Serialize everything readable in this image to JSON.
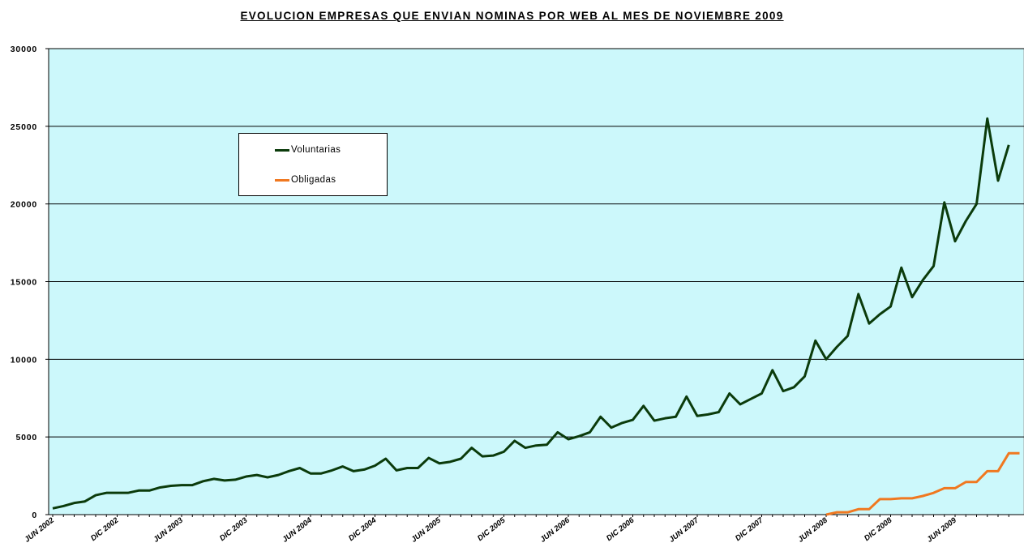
{
  "chart_data": {
    "type": "line",
    "title": "EVOLUCION EMPRESAS QUE ENVIAN NOMINAS POR WEB AL MES DE NOVIEMBRE 2009",
    "ylim": [
      0,
      30000
    ],
    "yticks": [
      0,
      5000,
      10000,
      15000,
      20000,
      25000,
      30000
    ],
    "ytick_labels": [
      "0",
      "5000",
      "10000",
      "15000",
      "20000",
      "25000",
      "30000"
    ],
    "grid": true,
    "legend_position": "upper-left",
    "colors": {
      "plot_background": "#ccf8fb",
      "grid": "#000000",
      "voluntarias": "#0b3b0b",
      "obligadas": "#f07820"
    },
    "xtick_labels": [
      "JUN 2002",
      "DIC 2002",
      "JUN 2003",
      "DIC 2003",
      "JUN 2004",
      "DIC 2004",
      "JUN 2005",
      "DIC 2005",
      "JUN 2006",
      "DIC 2006",
      "JUN 2007",
      "DIC 2007",
      "JUN 2008",
      "DIC 2008",
      "JUN 2009"
    ],
    "x_start": "JUN 2002",
    "num_points": 90,
    "series": [
      {
        "name": "Voluntarias",
        "values": [
          400,
          550,
          750,
          850,
          1250,
          1400,
          1400,
          1400,
          1550,
          1550,
          1750,
          1850,
          1900,
          1900,
          2150,
          2300,
          2200,
          2250,
          2450,
          2550,
          2400,
          2550,
          2800,
          3000,
          2650,
          2650,
          2850,
          3100,
          2800,
          2900,
          3150,
          3600,
          2850,
          3000,
          3000,
          3650,
          3300,
          3400,
          3600,
          4300,
          3750,
          3800,
          4050,
          4750,
          4300,
          4450,
          4500,
          5300,
          4850,
          5050,
          5300,
          6300,
          5600,
          5900,
          6100,
          7000,
          6050,
          6200,
          6300,
          7600,
          6350,
          6450,
          6600,
          7800,
          7100,
          7450,
          7800,
          9300,
          7950,
          8200,
          8900,
          11200,
          10000,
          10800,
          11500,
          14200,
          12300,
          12900,
          13400,
          15900,
          14000,
          15100,
          16000,
          20100,
          17600,
          18900,
          20000,
          25500,
          21500,
          23800
        ]
      },
      {
        "name": "Obligadas",
        "start_index": 72,
        "values": [
          0,
          150,
          150,
          350,
          350,
          1000,
          1000,
          1050,
          1050,
          1200,
          1400,
          1700,
          1700,
          2100,
          2100,
          2800,
          2800,
          3950,
          3950
        ]
      }
    ]
  }
}
